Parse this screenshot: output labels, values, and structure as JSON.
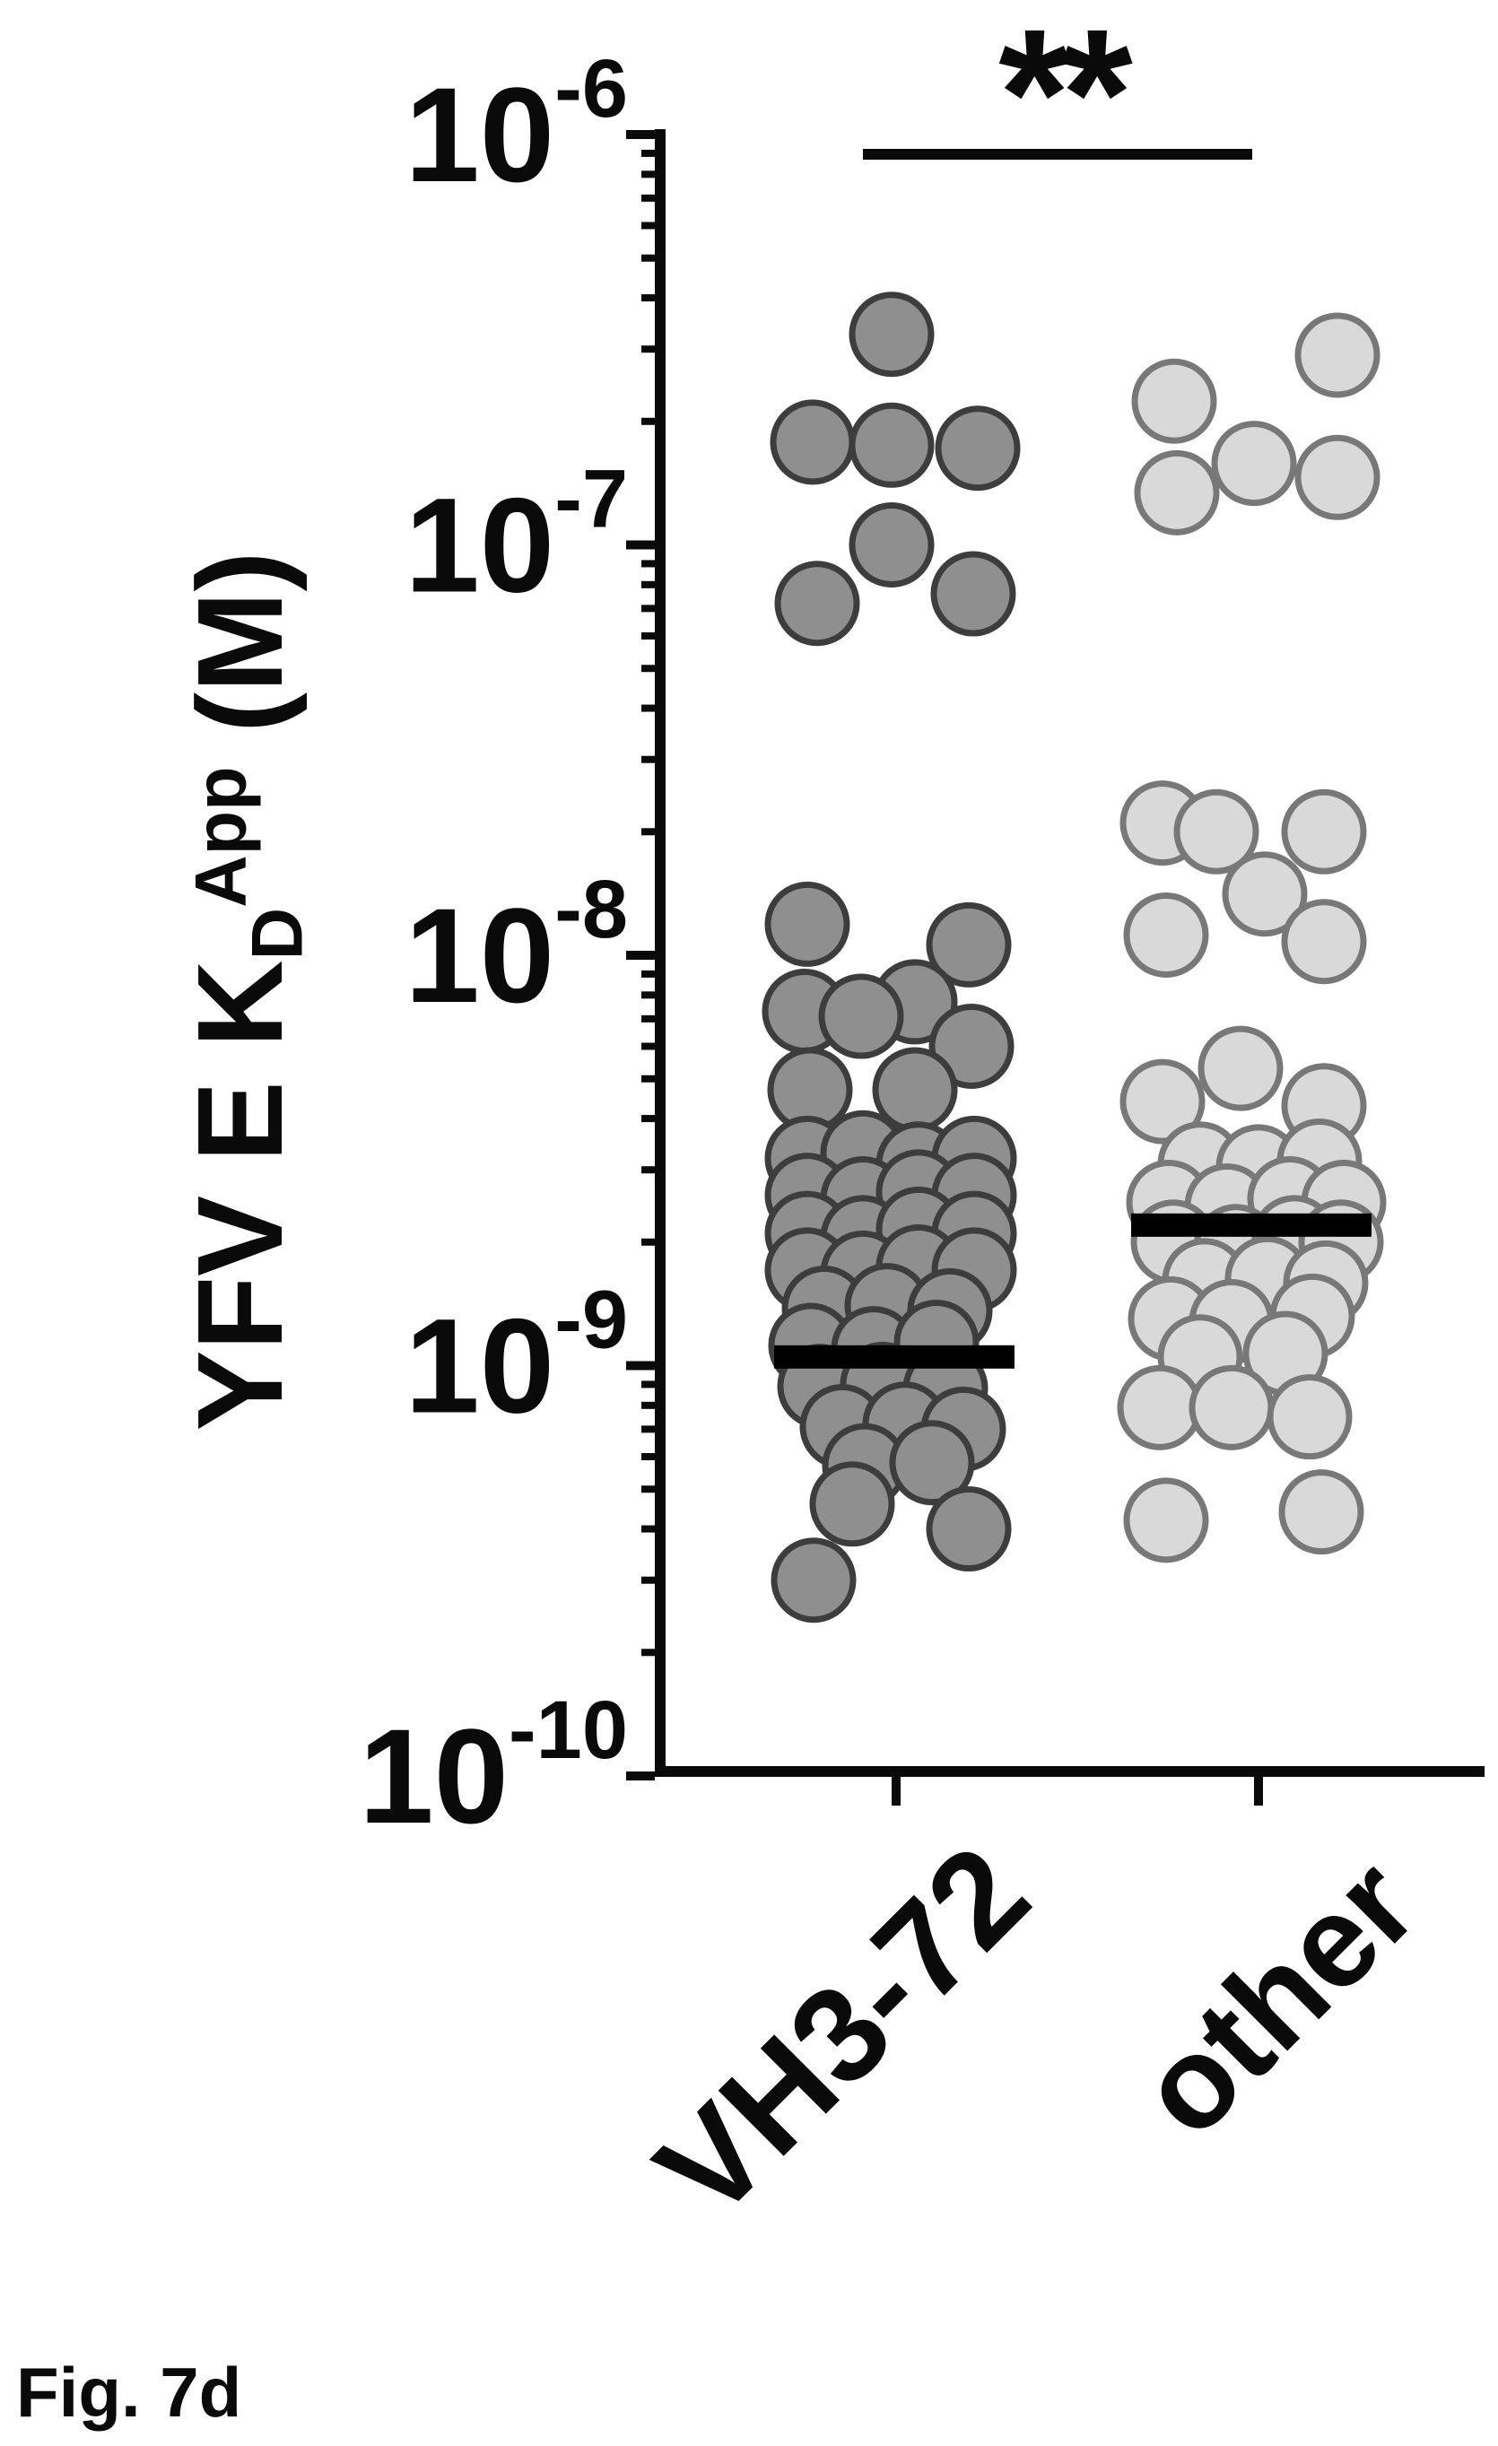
{
  "figure": {
    "label": "Fig. 7d"
  },
  "chart_data": {
    "type": "scatter",
    "subtype": "column-dot-plot-log-scale",
    "title": "",
    "xlabel": "",
    "ylabel": "YFV E KD App (M)",
    "ylabel_parts": {
      "prefix": "YFV E K",
      "sub": "D",
      "sup": "App",
      "suffix": " (M)"
    },
    "categories": [
      "VH3-72",
      "other"
    ],
    "y_axis": {
      "scale": "log",
      "unit": "M",
      "tick_base": "10",
      "tick_exponents": [
        -6,
        -7,
        -8,
        -9,
        -10
      ],
      "ylim": [
        1e-10,
        1e-06
      ],
      "minor_ticks": "log-decade",
      "grid": false
    },
    "significance": {
      "label": "**",
      "comparison": [
        "VH3-72",
        "other"
      ]
    },
    "colors": {
      "vh3_72_fill": "#8f8f8f",
      "vh3_72_edge": "#3d3d3d",
      "other_fill": "#d9d9d9",
      "other_edge": "#787878",
      "median_bar": "#000000",
      "axis": "#0a0a0a"
    },
    "series": [
      {
        "name": "VH3-72",
        "median_M": 1.05e-09,
        "points": [
          [
            3.26e-07,
            -5
          ],
          [
            1.78e-07,
            -93
          ],
          [
            1.75e-07,
            -5
          ],
          [
            1.72e-07,
            91
          ],
          [
            1e-07,
            -5
          ],
          [
            7.6e-08,
            86
          ],
          [
            7.2e-08,
            -88
          ],
          [
            1.19e-08,
            -99
          ],
          [
            1.06e-08,
            81
          ],
          [
            7.7e-09,
            21
          ],
          [
            7.3e-09,
            -102
          ],
          [
            7.1e-09,
            -39
          ],
          [
            6e-09,
            84
          ],
          [
            4.7e-09,
            -96
          ],
          [
            4.7e-09,
            21
          ],
          [
            3.2e-09,
            -99
          ],
          [
            3.3e-09,
            -37
          ],
          [
            3.1e-09,
            25
          ],
          [
            3.2e-09,
            87
          ],
          [
            2.6e-09,
            -99
          ],
          [
            2.55e-09,
            -37
          ],
          [
            2.65e-09,
            25
          ],
          [
            2.6e-09,
            87
          ],
          [
            2.1e-09,
            -99
          ],
          [
            2.05e-09,
            -37
          ],
          [
            2.15e-09,
            25
          ],
          [
            2.1e-09,
            87
          ],
          [
            1.71e-09,
            -99
          ],
          [
            1.68e-09,
            -37
          ],
          [
            1.74e-09,
            25
          ],
          [
            1.71e-09,
            87
          ],
          [
            1.38e-09,
            -80
          ],
          [
            1.4e-09,
            -10
          ],
          [
            1.36e-09,
            60
          ],
          [
            1.12e-09,
            -95
          ],
          [
            1.1e-09,
            -25
          ],
          [
            1.14e-09,
            45
          ],
          [
            8.9e-10,
            -85
          ],
          [
            9e-10,
            -15
          ],
          [
            8.8e-10,
            55
          ],
          [
            7.1e-10,
            -60
          ],
          [
            7.2e-10,
            10
          ],
          [
            7e-10,
            75
          ],
          [
            5.7e-10,
            -35
          ],
          [
            5.8e-10,
            40
          ],
          [
            4.6e-10,
            -49
          ],
          [
            4e-10,
            81
          ],
          [
            3e-10,
            -92
          ]
        ]
      },
      {
        "name": "other",
        "median_M": 2.2e-09,
        "points": [
          [
            2.9e-07,
            88
          ],
          [
            2.24e-07,
            -94
          ],
          [
            1.58e-07,
            -5
          ],
          [
            1.46e-07,
            88
          ],
          [
            1.34e-07,
            -91
          ],
          [
            2.1e-08,
            -107
          ],
          [
            2e-08,
            -47
          ],
          [
            2e-08,
            73
          ],
          [
            1.41e-08,
            7
          ],
          [
            1.12e-08,
            -103
          ],
          [
            1.08e-08,
            73
          ],
          [
            5.3e-09,
            -20
          ],
          [
            4.4e-09,
            -107
          ],
          [
            4.3e-09,
            73
          ],
          [
            3.1e-09,
            -65
          ],
          [
            3.05e-09,
            0
          ],
          [
            3.15e-09,
            68
          ],
          [
            2.5e-09,
            -100
          ],
          [
            2.45e-09,
            -35
          ],
          [
            2.55e-09,
            35
          ],
          [
            2.5e-09,
            95
          ],
          [
            2e-09,
            -95
          ],
          [
            1.95e-09,
            -25
          ],
          [
            2.05e-09,
            40
          ],
          [
            2e-09,
            92
          ],
          [
            1.61e-09,
            -60
          ],
          [
            1.63e-09,
            10
          ],
          [
            1.59e-09,
            75
          ],
          [
            1.3e-09,
            -98
          ],
          [
            1.28e-09,
            -30
          ],
          [
            1.32e-09,
            60
          ],
          [
            1.05e-09,
            -65
          ],
          [
            1.07e-09,
            30
          ],
          [
            7.9e-10,
            -110
          ],
          [
            7.9e-10,
            -30
          ],
          [
            7.5e-10,
            57
          ],
          [
            4.4e-10,
            70
          ],
          [
            4.2e-10,
            -103
          ]
        ]
      }
    ]
  }
}
